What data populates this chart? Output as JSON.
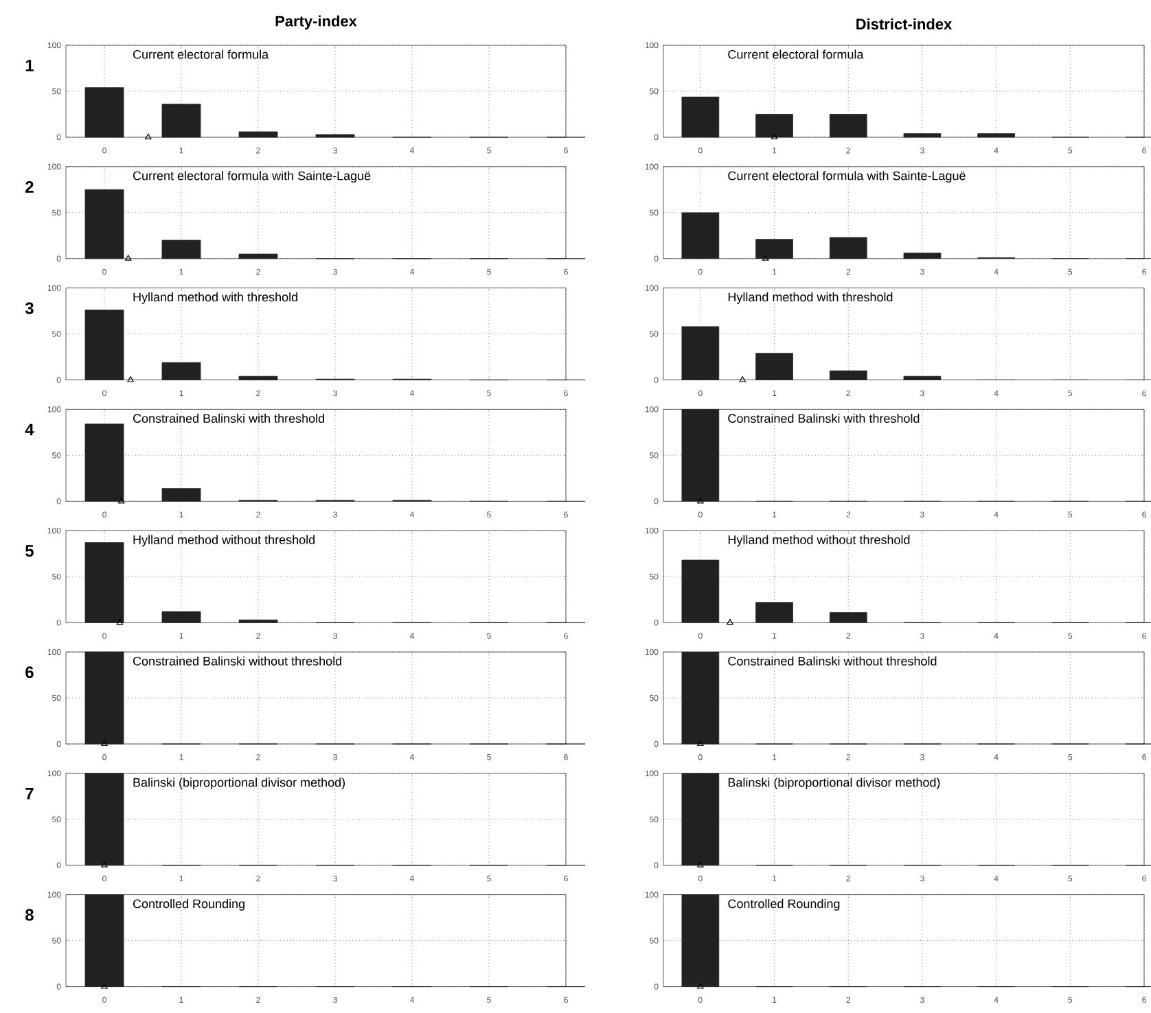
{
  "chart_data": [
    {
      "type": "bar",
      "title": "Party-index",
      "subtitle": "Current electoral formula",
      "annotations": [
        "1"
      ],
      "xlim": [
        -0.5,
        6
      ],
      "ylim": [
        0,
        100
      ],
      "xticks": [
        0,
        1,
        2,
        3,
        4,
        5,
        6
      ],
      "yticks": [
        0,
        50,
        100
      ],
      "grid": true,
      "series": [
        {
          "x": [
            0,
            1,
            2,
            3,
            4,
            5,
            6
          ],
          "values": [
            54,
            36,
            6,
            3,
            0,
            0,
            0
          ],
          "color": "#222222"
        },
        {
          "type": "scatter",
          "marker": "triangle",
          "x": [
            0.57
          ],
          "values": [
            0
          ],
          "color": "#000000"
        }
      ]
    },
    {
      "type": "bar",
      "title": "District-index",
      "subtitle": "Current electoral formula",
      "xlim": [
        -0.5,
        6
      ],
      "ylim": [
        0,
        100
      ],
      "xticks": [
        0,
        1,
        2,
        3,
        4,
        5,
        6
      ],
      "yticks": [
        0,
        50,
        100
      ],
      "grid": true,
      "series": [
        {
          "x": [
            0,
            1,
            2,
            3,
            4,
            5,
            6
          ],
          "values": [
            44,
            25,
            25,
            4,
            4,
            0,
            0
          ],
          "color": "#222222"
        },
        {
          "type": "scatter",
          "marker": "triangle",
          "x": [
            1.0
          ],
          "values": [
            0
          ],
          "color": "#000000"
        }
      ]
    },
    {
      "type": "bar",
      "subtitle": "Current electoral formula with Sainte-Laguë",
      "annotations": [
        "2"
      ],
      "xlim": [
        -0.5,
        6
      ],
      "ylim": [
        0,
        100
      ],
      "xticks": [
        0,
        1,
        2,
        3,
        4,
        5,
        6
      ],
      "yticks": [
        0,
        50,
        100
      ],
      "grid": true,
      "series": [
        {
          "x": [
            0,
            1,
            2,
            3,
            4,
            5,
            6
          ],
          "values": [
            75,
            20,
            5,
            0,
            0,
            0,
            0
          ],
          "color": "#222222"
        },
        {
          "type": "scatter",
          "marker": "triangle",
          "x": [
            0.31
          ],
          "values": [
            0
          ],
          "color": "#000000"
        }
      ]
    },
    {
      "type": "bar",
      "subtitle": "Current electoral formula with Sainte-Laguë",
      "xlim": [
        -0.5,
        6
      ],
      "ylim": [
        0,
        100
      ],
      "xticks": [
        0,
        1,
        2,
        3,
        4,
        5,
        6
      ],
      "yticks": [
        0,
        50,
        100
      ],
      "grid": true,
      "series": [
        {
          "x": [
            0,
            1,
            2,
            3,
            4,
            5,
            6
          ],
          "values": [
            50,
            21,
            23,
            6,
            1,
            0,
            0
          ],
          "color": "#222222"
        },
        {
          "type": "scatter",
          "marker": "triangle",
          "x": [
            0.88
          ],
          "values": [
            0
          ],
          "color": "#000000"
        }
      ]
    },
    {
      "type": "bar",
      "subtitle": "Hylland method with threshold",
      "annotations": [
        "3"
      ],
      "xlim": [
        -0.5,
        6
      ],
      "ylim": [
        0,
        100
      ],
      "xticks": [
        0,
        1,
        2,
        3,
        4,
        5,
        6
      ],
      "yticks": [
        0,
        50,
        100
      ],
      "grid": true,
      "series": [
        {
          "x": [
            0,
            1,
            2,
            3,
            4,
            5,
            6
          ],
          "values": [
            76,
            19,
            4,
            1,
            1,
            0,
            0
          ],
          "color": "#222222"
        },
        {
          "type": "scatter",
          "marker": "triangle",
          "x": [
            0.34
          ],
          "values": [
            0
          ],
          "color": "#000000"
        }
      ]
    },
    {
      "type": "bar",
      "subtitle": "Hylland method with threshold",
      "xlim": [
        -0.5,
        6
      ],
      "ylim": [
        0,
        100
      ],
      "xticks": [
        0,
        1,
        2,
        3,
        4,
        5,
        6
      ],
      "yticks": [
        0,
        50,
        100
      ],
      "grid": true,
      "series": [
        {
          "x": [
            0,
            1,
            2,
            3,
            4,
            5,
            6
          ],
          "values": [
            58,
            29,
            10,
            4,
            0,
            0,
            0
          ],
          "color": "#222222"
        },
        {
          "type": "scatter",
          "marker": "triangle",
          "x": [
            0.57
          ],
          "values": [
            0
          ],
          "color": "#000000"
        }
      ]
    },
    {
      "type": "bar",
      "subtitle": "Constrained Balinski with threshold",
      "annotations": [
        "4"
      ],
      "xlim": [
        -0.5,
        6
      ],
      "ylim": [
        0,
        100
      ],
      "xticks": [
        0,
        1,
        2,
        3,
        4,
        5,
        6
      ],
      "yticks": [
        0,
        50,
        100
      ],
      "grid": true,
      "series": [
        {
          "x": [
            0,
            1,
            2,
            3,
            4,
            5,
            6
          ],
          "values": [
            84,
            14,
            1,
            1,
            1,
            0,
            0
          ],
          "color": "#222222"
        },
        {
          "type": "scatter",
          "marker": "triangle",
          "x": [
            0.22
          ],
          "values": [
            0
          ],
          "color": "#000000"
        }
      ]
    },
    {
      "type": "bar",
      "subtitle": "Constrained Balinski with threshold",
      "xlim": [
        -0.5,
        6
      ],
      "ylim": [
        0,
        100
      ],
      "xticks": [
        0,
        1,
        2,
        3,
        4,
        5,
        6
      ],
      "yticks": [
        0,
        50,
        100
      ],
      "grid": true,
      "series": [
        {
          "type": "bar",
          "x": [
            0,
            1,
            2,
            3,
            4,
            5,
            6
          ],
          "values": [
            100,
            0,
            0,
            0,
            0,
            0,
            0
          ],
          "color": "#222222"
        },
        {
          "type": "scatter",
          "marker": "triangle",
          "x": [
            0
          ],
          "values": [
            0
          ],
          "color": "#000000"
        }
      ]
    },
    {
      "type": "bar",
      "subtitle": "Hylland method without threshold",
      "annotations": [
        "5"
      ],
      "xlim": [
        -0.5,
        6
      ],
      "ylim": [
        0,
        100
      ],
      "xticks": [
        0,
        1,
        2,
        3,
        4,
        5,
        6
      ],
      "yticks": [
        0,
        50,
        100
      ],
      "grid": true,
      "series": [
        {
          "x": [
            0,
            1,
            2,
            3,
            4,
            5,
            6
          ],
          "values": [
            87,
            12,
            3,
            0,
            0,
            0,
            0
          ],
          "color": "#222222"
        },
        {
          "type": "scatter",
          "marker": "triangle",
          "x": [
            0.2
          ],
          "values": [
            0
          ],
          "color": "#000000"
        }
      ]
    },
    {
      "type": "bar",
      "subtitle": "Hylland method without threshold",
      "xlim": [
        -0.5,
        6
      ],
      "ylim": [
        0,
        100
      ],
      "xticks": [
        0,
        1,
        2,
        3,
        4,
        5,
        6
      ],
      "yticks": [
        0,
        50,
        100
      ],
      "grid": true,
      "series": [
        {
          "x": [
            0,
            1,
            2,
            3,
            4,
            5,
            6
          ],
          "values": [
            68,
            22,
            11,
            0,
            0,
            0,
            0
          ],
          "color": "#222222"
        },
        {
          "type": "scatter",
          "marker": "triangle",
          "x": [
            0.4
          ],
          "values": [
            0
          ],
          "color": "#000000"
        }
      ]
    },
    {
      "type": "bar",
      "subtitle": "Constrained Balinski without threshold",
      "annotations": [
        "6"
      ],
      "xlim": [
        -0.5,
        6
      ],
      "ylim": [
        0,
        100
      ],
      "xticks": [
        0,
        1,
        2,
        3,
        4,
        5,
        6
      ],
      "yticks": [
        0,
        50,
        100
      ],
      "grid": true,
      "series": [
        {
          "type": "bar",
          "x": [
            0,
            1,
            2,
            3,
            4,
            5,
            6
          ],
          "values": [
            100,
            0,
            0,
            0,
            0,
            0,
            0
          ],
          "color": "#222222"
        },
        {
          "type": "scatter",
          "marker": "triangle",
          "x": [
            0
          ],
          "values": [
            0
          ],
          "color": "#000000"
        }
      ]
    },
    {
      "type": "bar",
      "subtitle": "Constrained Balinski without threshold",
      "xlim": [
        -0.5,
        6
      ],
      "ylim": [
        0,
        100
      ],
      "xticks": [
        0,
        1,
        2,
        3,
        4,
        5,
        6
      ],
      "yticks": [
        0,
        50,
        100
      ],
      "grid": true,
      "series": [
        {
          "type": "bar",
          "x": [
            0,
            1,
            2,
            3,
            4,
            5,
            6
          ],
          "values": [
            100,
            0,
            0,
            0,
            0,
            0,
            0
          ],
          "color": "#222222"
        },
        {
          "type": "scatter",
          "marker": "triangle",
          "x": [
            0
          ],
          "values": [
            0
          ],
          "color": "#000000"
        }
      ]
    },
    {
      "type": "bar",
      "subtitle": "Balinski (biproportional divisor method)",
      "annotations": [
        "7"
      ],
      "xlim": [
        -0.5,
        6
      ],
      "ylim": [
        0,
        100
      ],
      "xticks": [
        0,
        1,
        2,
        3,
        4,
        5,
        6
      ],
      "yticks": [
        0,
        50,
        100
      ],
      "grid": true,
      "series": [
        {
          "type": "bar",
          "x": [
            0,
            1,
            2,
            3,
            4,
            5,
            6
          ],
          "values": [
            100,
            0,
            0,
            0,
            0,
            0,
            0
          ],
          "color": "#222222"
        },
        {
          "type": "scatter",
          "marker": "triangle",
          "x": [
            0
          ],
          "values": [
            0
          ],
          "color": "#000000"
        }
      ]
    },
    {
      "type": "bar",
      "subtitle": "Balinski (biproportional divisor method)",
      "xlim": [
        -0.5,
        6
      ],
      "ylim": [
        0,
        100
      ],
      "xticks": [
        0,
        1,
        2,
        3,
        4,
        5,
        6
      ],
      "yticks": [
        0,
        50,
        100
      ],
      "grid": true,
      "series": [
        {
          "type": "bar",
          "x": [
            0,
            1,
            2,
            3,
            4,
            5,
            6
          ],
          "values": [
            100,
            0,
            0,
            0,
            0,
            0,
            0
          ],
          "color": "#222222"
        },
        {
          "type": "scatter",
          "marker": "triangle",
          "x": [
            0
          ],
          "values": [
            0
          ],
          "color": "#000000"
        }
      ]
    },
    {
      "type": "bar",
      "subtitle": "Controlled Rounding",
      "annotations": [
        "8"
      ],
      "xlim": [
        -0.5,
        6
      ],
      "ylim": [
        0,
        100
      ],
      "xticks": [
        0,
        1,
        2,
        3,
        4,
        5,
        6
      ],
      "yticks": [
        0,
        50,
        100
      ],
      "grid": true,
      "series": [
        {
          "type": "bar",
          "x": [
            0,
            1,
            2,
            3,
            4,
            5,
            6
          ],
          "values": [
            100,
            0,
            0,
            0,
            0,
            0,
            0
          ],
          "color": "#222222"
        },
        {
          "type": "scatter",
          "marker": "triangle",
          "x": [
            0
          ],
          "values": [
            0
          ],
          "color": "#000000"
        }
      ]
    },
    {
      "type": "bar",
      "subtitle": "Controlled Rounding",
      "xlim": [
        -0.5,
        6
      ],
      "ylim": [
        0,
        100
      ],
      "xticks": [
        0,
        1,
        2,
        3,
        4,
        5,
        6
      ],
      "yticks": [
        0,
        50,
        100
      ],
      "grid": true,
      "series": [
        {
          "type": "bar",
          "x": [
            0,
            1,
            2,
            3,
            4,
            5,
            6
          ],
          "values": [
            100,
            0,
            0,
            0,
            0,
            0,
            0
          ],
          "color": "#222222"
        },
        {
          "type": "scatter",
          "marker": "triangle",
          "x": [
            0
          ],
          "values": [
            0
          ],
          "color": "#000000"
        }
      ]
    }
  ]
}
